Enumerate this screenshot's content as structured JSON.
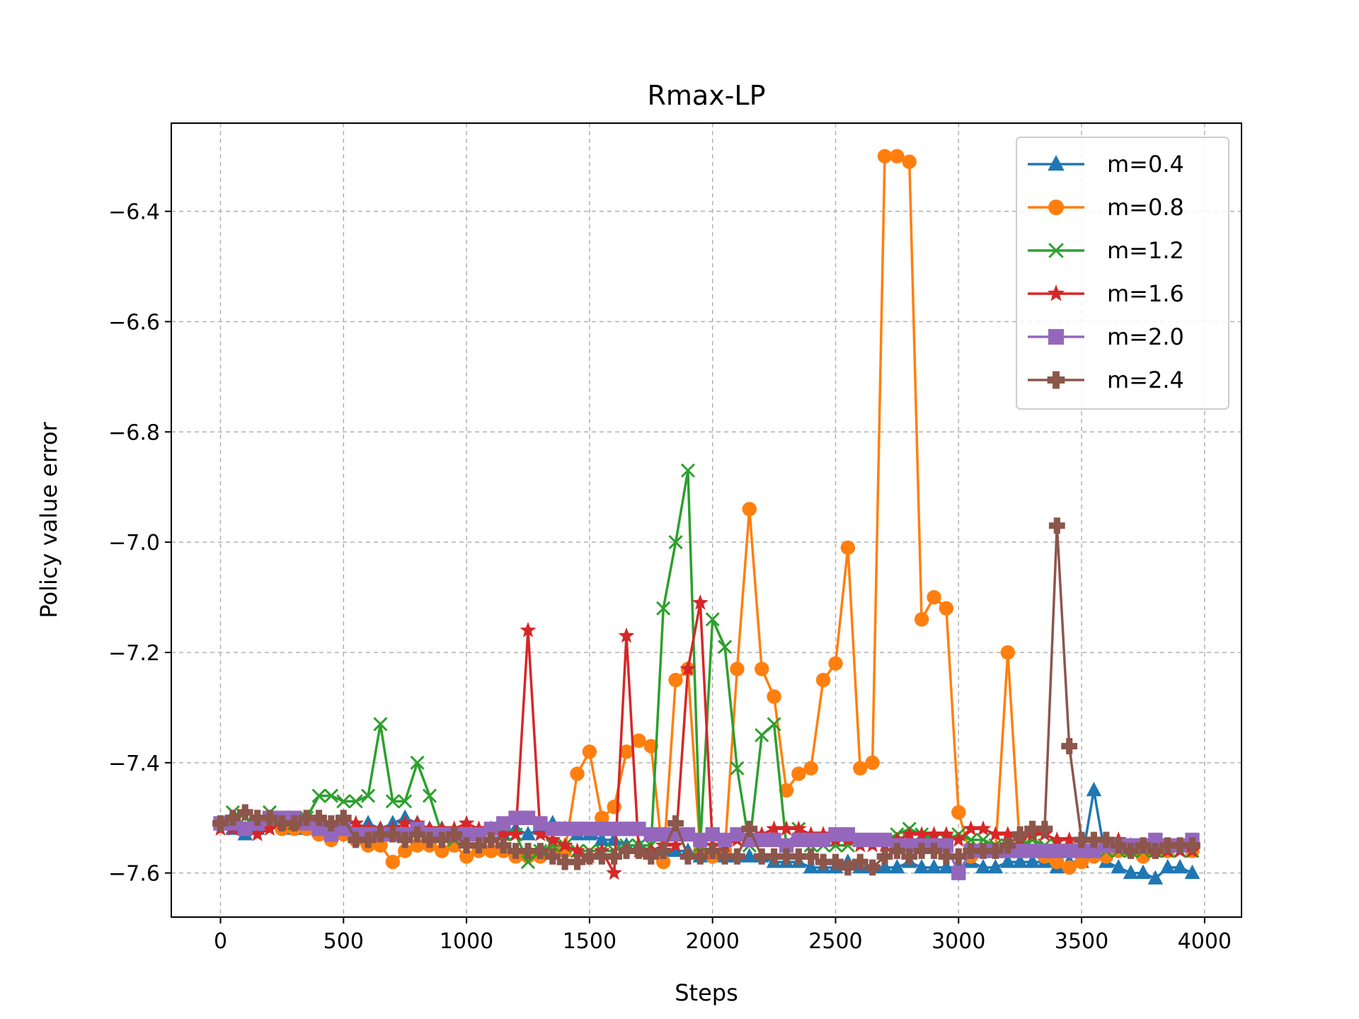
{
  "chart_data": {
    "type": "line",
    "title": "Rmax-LP",
    "xlabel": "Steps",
    "ylabel": "Policy value error",
    "xlim": [
      -200,
      4150
    ],
    "ylim": [
      -7.68,
      -6.24
    ],
    "xticks": [
      0,
      500,
      1000,
      1500,
      2000,
      2500,
      3000,
      3500,
      4000
    ],
    "yticks": [
      -7.6,
      -7.4,
      -7.2,
      -7.0,
      -6.8,
      -6.6,
      -6.4
    ],
    "grid": true,
    "legend_position": "top-right",
    "x": [
      0,
      50,
      100,
      150,
      200,
      250,
      300,
      350,
      400,
      450,
      500,
      550,
      600,
      650,
      700,
      750,
      800,
      850,
      900,
      950,
      1000,
      1050,
      1100,
      1150,
      1200,
      1250,
      1300,
      1350,
      1400,
      1450,
      1500,
      1550,
      1600,
      1650,
      1700,
      1750,
      1800,
      1850,
      1900,
      1950,
      2000,
      2050,
      2100,
      2150,
      2200,
      2250,
      2300,
      2350,
      2400,
      2450,
      2500,
      2550,
      2600,
      2650,
      2700,
      2750,
      2800,
      2850,
      2900,
      2950,
      3000,
      3050,
      3100,
      3150,
      3200,
      3250,
      3300,
      3350,
      3400,
      3450,
      3500,
      3550,
      3600,
      3650,
      3700,
      3750,
      3800,
      3850,
      3900,
      3950
    ],
    "series": [
      {
        "name": "m=0.4",
        "color": "#1f77b4",
        "marker": "triangle",
        "values": [
          -7.51,
          -7.52,
          -7.53,
          -7.52,
          -7.51,
          -7.51,
          -7.52,
          -7.52,
          -7.51,
          -7.52,
          -7.51,
          -7.52,
          -7.51,
          -7.52,
          -7.51,
          -7.5,
          -7.51,
          -7.52,
          -7.52,
          -7.53,
          -7.52,
          -7.53,
          -7.52,
          -7.53,
          -7.52,
          -7.53,
          -7.52,
          -7.51,
          -7.52,
          -7.53,
          -7.53,
          -7.54,
          -7.54,
          -7.55,
          -7.55,
          -7.56,
          -7.56,
          -7.56,
          -7.56,
          -7.57,
          -7.56,
          -7.57,
          -7.57,
          -7.57,
          -7.57,
          -7.58,
          -7.58,
          -7.58,
          -7.59,
          -7.59,
          -7.59,
          -7.58,
          -7.59,
          -7.59,
          -7.59,
          -7.59,
          -7.58,
          -7.59,
          -7.59,
          -7.59,
          -7.59,
          -7.58,
          -7.59,
          -7.59,
          -7.58,
          -7.58,
          -7.58,
          -7.58,
          -7.59,
          -7.58,
          -7.58,
          -7.45,
          -7.58,
          -7.59,
          -7.6,
          -7.6,
          -7.61,
          -7.59,
          -7.59,
          -7.6
        ]
      },
      {
        "name": "m=0.8",
        "color": "#ff7f0e",
        "marker": "circle",
        "values": [
          -7.51,
          -7.51,
          -7.52,
          -7.51,
          -7.51,
          -7.52,
          -7.52,
          -7.52,
          -7.53,
          -7.54,
          -7.53,
          -7.54,
          -7.55,
          -7.55,
          -7.58,
          -7.56,
          -7.55,
          -7.55,
          -7.56,
          -7.55,
          -7.57,
          -7.56,
          -7.56,
          -7.56,
          -7.57,
          -7.57,
          -7.57,
          -7.56,
          -7.56,
          -7.42,
          -7.38,
          -7.5,
          -7.48,
          -7.38,
          -7.36,
          -7.37,
          -7.58,
          -7.25,
          -7.23,
          -7.56,
          -7.57,
          -7.56,
          -7.23,
          -6.94,
          -7.23,
          -7.28,
          -7.45,
          -7.42,
          -7.41,
          -7.25,
          -7.22,
          -7.01,
          -7.41,
          -7.4,
          -6.3,
          -6.3,
          -6.31,
          -7.14,
          -7.1,
          -7.12,
          -7.49,
          -7.57,
          -7.56,
          -7.56,
          -7.2,
          -7.56,
          -7.56,
          -7.57,
          -7.58,
          -7.59,
          -7.58,
          -7.57,
          -7.57,
          -7.56,
          -7.56,
          -7.57,
          -7.56,
          -7.56,
          -7.55,
          -7.56
        ]
      },
      {
        "name": "m=1.2",
        "color": "#2ca02c",
        "marker": "x",
        "values": [
          -7.51,
          -7.49,
          -7.5,
          -7.51,
          -7.49,
          -7.5,
          -7.51,
          -7.5,
          -7.46,
          -7.46,
          -7.47,
          -7.47,
          -7.46,
          -7.33,
          -7.47,
          -7.47,
          -7.4,
          -7.46,
          -7.53,
          -7.54,
          -7.53,
          -7.53,
          -7.52,
          -7.53,
          -7.53,
          -7.58,
          -7.56,
          -7.55,
          -7.55,
          -7.56,
          -7.56,
          -7.56,
          -7.56,
          -7.55,
          -7.55,
          -7.55,
          -7.12,
          -7.0,
          -6.87,
          -7.55,
          -7.14,
          -7.19,
          -7.41,
          -7.55,
          -7.35,
          -7.33,
          -7.55,
          -7.52,
          -7.55,
          -7.55,
          -7.55,
          -7.55,
          -7.54,
          -7.54,
          -7.54,
          -7.53,
          -7.52,
          -7.53,
          -7.54,
          -7.54,
          -7.53,
          -7.54,
          -7.54,
          -7.55,
          -7.55,
          -7.55,
          -7.54,
          -7.55,
          -7.55,
          -7.56,
          -7.56,
          -7.56,
          -7.56,
          -7.56,
          -7.56,
          -7.56,
          -7.56,
          -7.56,
          -7.56,
          -7.56
        ]
      },
      {
        "name": "m=1.6",
        "color": "#d62728",
        "marker": "star",
        "values": [
          -7.52,
          -7.52,
          -7.52,
          -7.53,
          -7.52,
          -7.51,
          -7.51,
          -7.51,
          -7.51,
          -7.51,
          -7.51,
          -7.51,
          -7.52,
          -7.52,
          -7.52,
          -7.51,
          -7.51,
          -7.52,
          -7.52,
          -7.52,
          -7.51,
          -7.52,
          -7.53,
          -7.53,
          -7.53,
          -7.16,
          -7.53,
          -7.54,
          -7.55,
          -7.56,
          -7.57,
          -7.56,
          -7.6,
          -7.17,
          -7.56,
          -7.56,
          -7.55,
          -7.55,
          -7.23,
          -7.11,
          -7.55,
          -7.55,
          -7.54,
          -7.54,
          -7.53,
          -7.52,
          -7.52,
          -7.52,
          -7.53,
          -7.53,
          -7.54,
          -7.54,
          -7.55,
          -7.55,
          -7.55,
          -7.54,
          -7.53,
          -7.53,
          -7.53,
          -7.53,
          -7.54,
          -7.52,
          -7.52,
          -7.53,
          -7.53,
          -7.54,
          -7.53,
          -7.53,
          -7.54,
          -7.54,
          -7.54,
          -7.54,
          -7.54,
          -7.54,
          -7.55,
          -7.55,
          -7.56,
          -7.56,
          -7.56,
          -7.56
        ]
      },
      {
        "name": "m=2.0",
        "color": "#9467bd",
        "marker": "square",
        "values": [
          -7.51,
          -7.51,
          -7.52,
          -7.51,
          -7.5,
          -7.5,
          -7.5,
          -7.51,
          -7.52,
          -7.53,
          -7.52,
          -7.53,
          -7.53,
          -7.53,
          -7.53,
          -7.53,
          -7.52,
          -7.53,
          -7.53,
          -7.53,
          -7.53,
          -7.53,
          -7.52,
          -7.51,
          -7.5,
          -7.5,
          -7.51,
          -7.52,
          -7.52,
          -7.52,
          -7.52,
          -7.52,
          -7.52,
          -7.52,
          -7.52,
          -7.53,
          -7.53,
          -7.53,
          -7.53,
          -7.54,
          -7.53,
          -7.54,
          -7.53,
          -7.54,
          -7.54,
          -7.54,
          -7.55,
          -7.54,
          -7.54,
          -7.54,
          -7.53,
          -7.53,
          -7.54,
          -7.54,
          -7.54,
          -7.55,
          -7.55,
          -7.55,
          -7.55,
          -7.55,
          -7.6,
          -7.56,
          -7.56,
          -7.56,
          -7.56,
          -7.56,
          -7.56,
          -7.56,
          -7.56,
          -7.56,
          -7.56,
          -7.56,
          -7.55,
          -7.55,
          -7.55,
          -7.55,
          -7.54,
          -7.55,
          -7.55,
          -7.54
        ]
      },
      {
        "name": "m=2.4",
        "color": "#8c564b",
        "marker": "plus",
        "values": [
          -7.51,
          -7.5,
          -7.49,
          -7.5,
          -7.5,
          -7.51,
          -7.51,
          -7.5,
          -7.5,
          -7.51,
          -7.5,
          -7.54,
          -7.54,
          -7.53,
          -7.53,
          -7.54,
          -7.53,
          -7.54,
          -7.54,
          -7.53,
          -7.55,
          -7.55,
          -7.54,
          -7.55,
          -7.56,
          -7.56,
          -7.56,
          -7.57,
          -7.58,
          -7.58,
          -7.57,
          -7.57,
          -7.57,
          -7.56,
          -7.56,
          -7.57,
          -7.56,
          -7.51,
          -7.57,
          -7.57,
          -7.56,
          -7.57,
          -7.57,
          -7.52,
          -7.57,
          -7.57,
          -7.57,
          -7.57,
          -7.57,
          -7.58,
          -7.58,
          -7.59,
          -7.58,
          -7.59,
          -7.57,
          -7.56,
          -7.57,
          -7.56,
          -7.56,
          -7.57,
          -7.57,
          -7.56,
          -7.56,
          -7.56,
          -7.55,
          -7.53,
          -7.52,
          -7.52,
          -6.97,
          -7.37,
          -7.54,
          -7.54,
          -7.54,
          -7.55,
          -7.56,
          -7.55,
          -7.56,
          -7.55,
          -7.55,
          -7.55
        ]
      }
    ]
  }
}
